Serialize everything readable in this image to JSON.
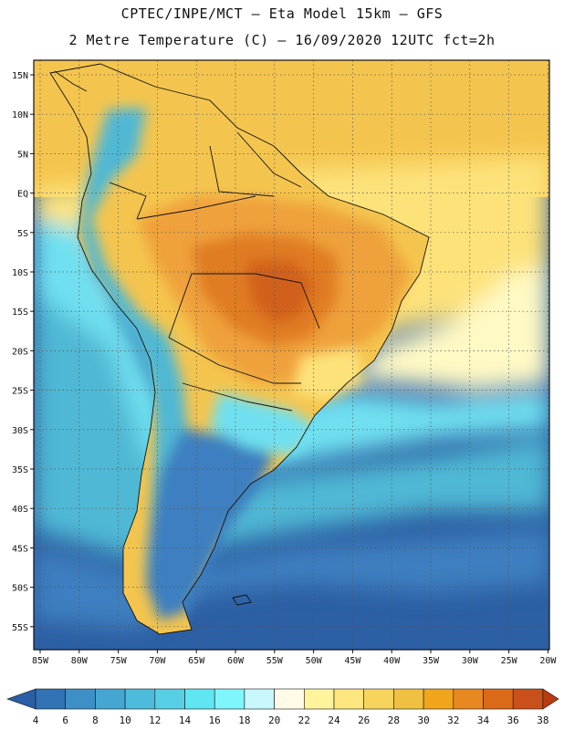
{
  "title": {
    "line1": "CPTEC/INPE/MCT –  Eta Model 15km – GFS",
    "line2": "2 Metre Temperature (C) – 16/09/2020 12UTC fct=2h"
  },
  "map": {
    "lat_labels": [
      "15N",
      "10N",
      "5N",
      "EQ",
      "5S",
      "10S",
      "15S",
      "20S",
      "25S",
      "30S",
      "35S",
      "40S",
      "45S",
      "50S",
      "55S"
    ],
    "lon_labels": [
      "85W",
      "80W",
      "75W",
      "70W",
      "65W",
      "60W",
      "55W",
      "50W",
      "45W",
      "40W",
      "35W",
      "30W",
      "25W",
      "20W"
    ],
    "colors": {
      "ocean_deep": "#2c5fa3",
      "ocean_mid": "#3d7fc0",
      "ocean_light": "#4fb8d4",
      "ocean_cyan": "#6fe0f0",
      "warm_pale": "#fff9c4",
      "warm_yellow": "#fde27a",
      "warm_gold": "#f4c54e",
      "warm_orange": "#efa13a",
      "hot_orange": "#e07c24",
      "hot_core": "#d0611a"
    }
  },
  "colorbar": {
    "labels": [
      "4",
      "6",
      "8",
      "10",
      "12",
      "14",
      "16",
      "18",
      "20",
      "22",
      "24",
      "26",
      "28",
      "30",
      "32",
      "34",
      "36",
      "38"
    ],
    "colors": [
      "#2a5fa5",
      "#3173b4",
      "#3e8fc6",
      "#45a6d2",
      "#4dbcdc",
      "#57d0e6",
      "#5fe6f2",
      "#7ef6fb",
      "#c8f7fc",
      "#fffbe6",
      "#fff49b",
      "#fde580",
      "#f7d55c",
      "#f0c140",
      "#f0a51c",
      "#e88820",
      "#da6a18",
      "#c9501a",
      "#b83c12"
    ]
  }
}
